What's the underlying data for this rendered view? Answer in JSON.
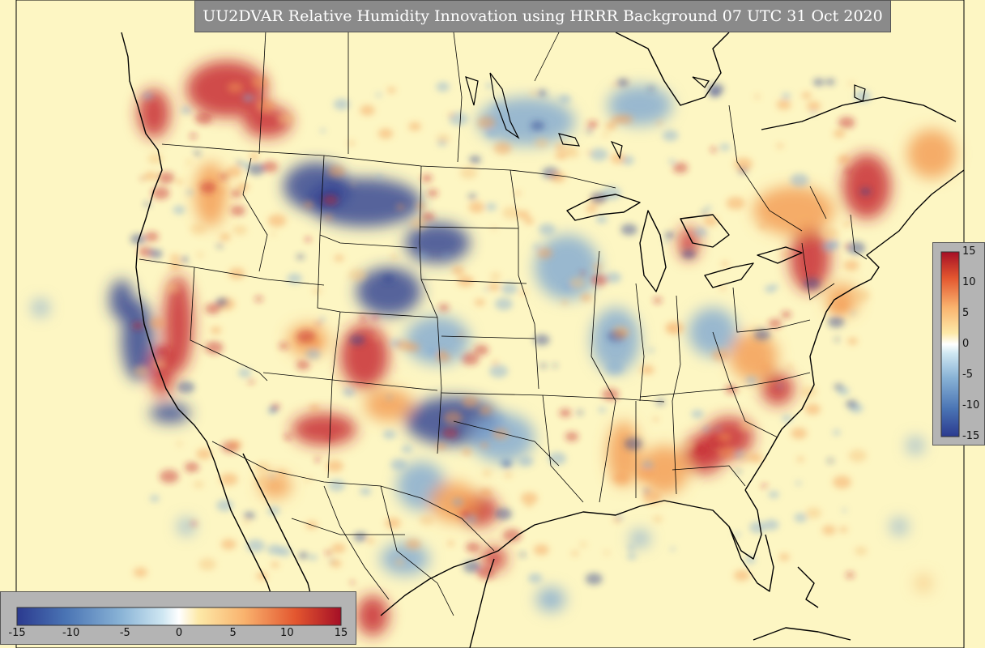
{
  "title": "UU2DVAR Relative Humidity Innovation using HRRR Background 07 UTC 31 Oct 2020",
  "colorbar": {
    "min": -15,
    "max": 15,
    "stops": [
      "#2b3a8f",
      "#4a74b4",
      "#89b3d6",
      "#cfe7f2",
      "#ffffff",
      "#fde9a8",
      "#f9b36e",
      "#e3562f",
      "#a50f26"
    ],
    "horizontal_ticks": [
      {
        "value": -15,
        "label": "-15"
      },
      {
        "value": -10,
        "label": "-10"
      },
      {
        "value": -5,
        "label": "-5"
      },
      {
        "value": 0,
        "label": "0"
      },
      {
        "value": 5,
        "label": "5"
      },
      {
        "value": 10,
        "label": "10"
      },
      {
        "value": 15,
        "label": "15"
      }
    ],
    "vertical_ticks": [
      {
        "value": 15,
        "label": "15"
      },
      {
        "value": 10,
        "label": "10"
      },
      {
        "value": 5,
        "label": "5"
      },
      {
        "value": 0,
        "label": "0"
      },
      {
        "value": -5,
        "label": "-5"
      },
      {
        "value": -10,
        "label": "-10"
      },
      {
        "value": -15,
        "label": "-15"
      }
    ]
  },
  "colors": {
    "background_field": "#fdf6c3",
    "moist_anomaly": "#c4202b",
    "dry_anomaly": "#2c3d91",
    "boundary": "#000000"
  }
}
